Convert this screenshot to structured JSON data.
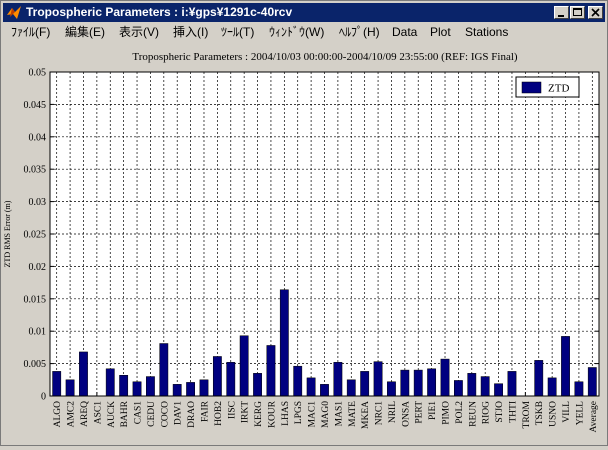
{
  "window": {
    "title": "Tropospheric Parameters : i:¥gps¥1291c-40rcv",
    "icon": "matlab-icon",
    "controls": [
      "minimize-icon",
      "maximize-icon",
      "close-icon"
    ]
  },
  "menubar": {
    "items": [
      {
        "label": "ﾌｧｲﾙ(F)",
        "key": "file"
      },
      {
        "label": "編集(E)",
        "key": "edit"
      },
      {
        "label": "表示(V)",
        "key": "view"
      },
      {
        "label": "挿入(I)",
        "key": "insert"
      },
      {
        "label": "ﾂｰﾙ(T)",
        "key": "tools"
      },
      {
        "label": "ｳｨﾝﾄﾞｳ(W)",
        "key": "window"
      },
      {
        "label": "ﾍﾙﾌﾟ(H)",
        "key": "help"
      },
      {
        "label": "Data",
        "key": "data"
      },
      {
        "label": "Plot",
        "key": "plot"
      },
      {
        "label": "Stations",
        "key": "stations"
      }
    ]
  },
  "chart_data": {
    "type": "bar",
    "title": "Tropospheric Parameters : 2004/10/03 00:00:00-2004/10/09 23:55:00 (REF: IGS Final)",
    "ylabel": "ZTD RMS Error (m)",
    "xlabel": "",
    "ylim": [
      0,
      0.05
    ],
    "yticks": [
      0,
      0.005,
      0.01,
      0.015,
      0.02,
      0.025,
      0.03,
      0.035,
      0.04,
      0.045,
      0.05
    ],
    "ytick_labels": [
      "0",
      "0.005",
      "0.01",
      "0.015",
      "0.02",
      "0.025",
      "0.03",
      "0.035",
      "0.04",
      "0.045",
      "0.05"
    ],
    "grid": true,
    "legend_position": "top-right",
    "bar_color": "#000080",
    "categories": [
      "ALGO",
      "AMC2",
      "AREQ",
      "ASC1",
      "AUCK",
      "BAHR",
      "CAS1",
      "CEDU",
      "COCO",
      "DAV1",
      "DRAO",
      "FAIR",
      "HOB2",
      "IISC",
      "IRKT",
      "KERG",
      "KOUR",
      "LHAS",
      "LPGS",
      "MAC1",
      "MAG0",
      "MAS1",
      "MATE",
      "MKEA",
      "NRC1",
      "NRIL",
      "ONSA",
      "PERT",
      "PIE1",
      "PIMO",
      "POL2",
      "REUN",
      "RIOG",
      "STJO",
      "THTI",
      "TROM",
      "TSKB",
      "USNO",
      "VILL",
      "YELL",
      "Average"
    ],
    "series": [
      {
        "name": "ZTD",
        "values": [
          0.0038,
          0.0025,
          0.0068,
          0.0,
          0.0042,
          0.0032,
          0.0022,
          0.003,
          0.0081,
          0.0018,
          0.0021,
          0.0025,
          0.0061,
          0.0052,
          0.0093,
          0.0035,
          0.0078,
          0.0164,
          0.0046,
          0.0028,
          0.0018,
          0.0052,
          0.0025,
          0.0038,
          0.0053,
          0.0022,
          0.004,
          0.004,
          0.0042,
          0.0057,
          0.0024,
          0.0035,
          0.003,
          0.0019,
          0.0038,
          0.0,
          0.0055,
          0.0028,
          0.0092,
          0.0022,
          0.0044
        ]
      }
    ]
  }
}
